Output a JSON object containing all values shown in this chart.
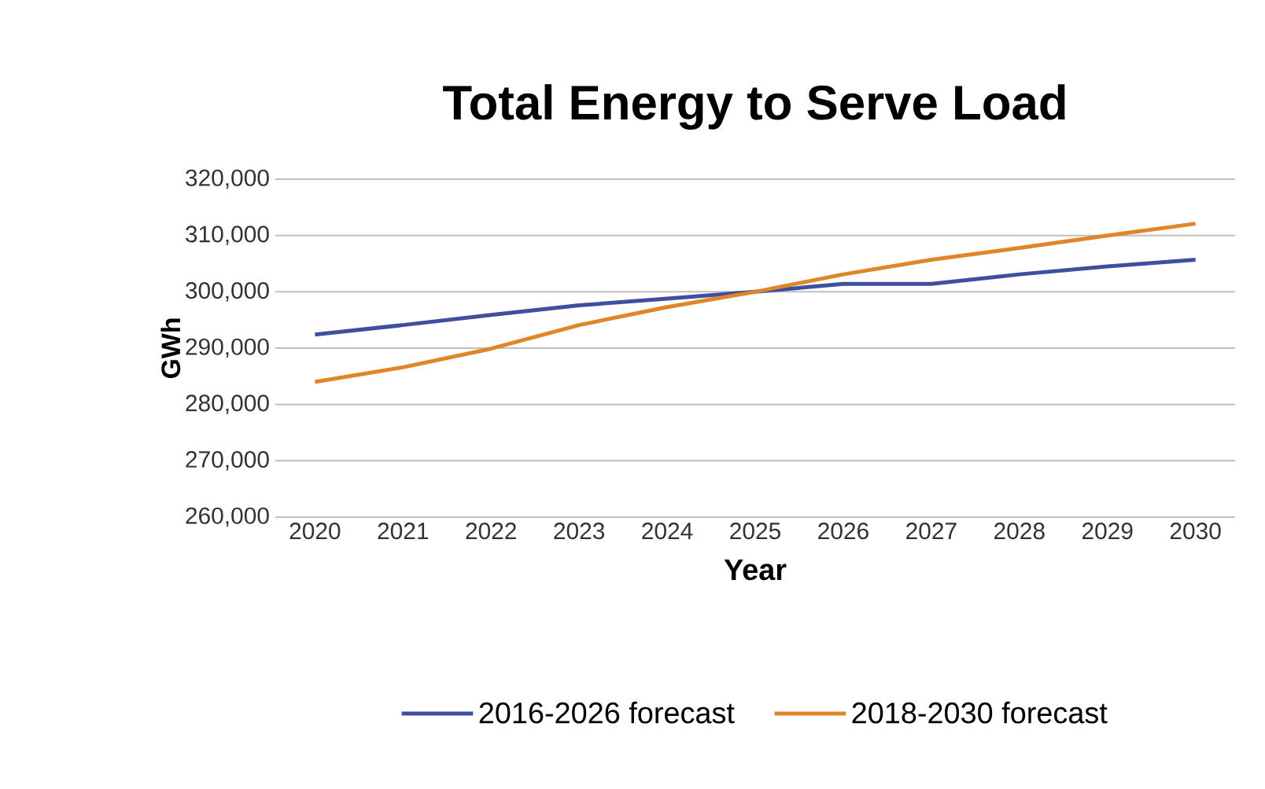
{
  "chart_data": {
    "type": "line",
    "title": "Total Energy to Serve Load",
    "xlabel": "Year",
    "ylabel": "GWh",
    "categories": [
      "2020",
      "2021",
      "2022",
      "2023",
      "2024",
      "2025",
      "2026",
      "2027",
      "2028",
      "2029",
      "2030"
    ],
    "series": [
      {
        "name": "2016-2026 forecast",
        "color": "#3f4fa0",
        "values": [
          292400,
          294100,
          295900,
          297600,
          298800,
          300000,
          301400,
          301400,
          303100,
          304500,
          305700
        ]
      },
      {
        "name": "2018-2030 forecast",
        "color": "#e0862a",
        "values": [
          284000,
          286600,
          289900,
          294100,
          297300,
          300000,
          303100,
          305700,
          307800,
          310000,
          312100
        ]
      }
    ],
    "ylim": [
      260000,
      320000
    ],
    "yticks": [
      {
        "value": 260000,
        "label": "260,000"
      },
      {
        "value": 270000,
        "label": "270,000"
      },
      {
        "value": 280000,
        "label": "280,000"
      },
      {
        "value": 290000,
        "label": "290,000"
      },
      {
        "value": 300000,
        "label": "300,000"
      },
      {
        "value": 310000,
        "label": "310,000"
      },
      {
        "value": 320000,
        "label": "320,000"
      }
    ],
    "grid": "y",
    "legend": "bottom",
    "marker": "none",
    "line_style": "solid"
  }
}
